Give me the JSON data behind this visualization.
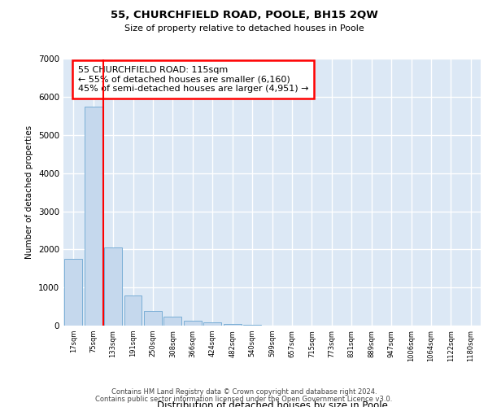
{
  "title1": "55, CHURCHFIELD ROAD, POOLE, BH15 2QW",
  "title2": "Size of property relative to detached houses in Poole",
  "xlabel": "Distribution of detached houses by size in Poole",
  "ylabel": "Number of detached properties",
  "footer1": "Contains HM Land Registry data © Crown copyright and database right 2024.",
  "footer2": "Contains public sector information licensed under the Open Government Licence v3.0.",
  "bin_labels": [
    "17sqm",
    "75sqm",
    "133sqm",
    "191sqm",
    "250sqm",
    "308sqm",
    "366sqm",
    "424sqm",
    "482sqm",
    "540sqm",
    "599sqm",
    "657sqm",
    "715sqm",
    "773sqm",
    "831sqm",
    "889sqm",
    "947sqm",
    "1006sqm",
    "1064sqm",
    "1122sqm",
    "1180sqm"
  ],
  "bar_values": [
    1750,
    5750,
    2050,
    800,
    380,
    240,
    130,
    90,
    50,
    20,
    10,
    5,
    3,
    0,
    0,
    0,
    0,
    0,
    0,
    0,
    0
  ],
  "bar_color": "#c5d8ed",
  "bar_edge_color": "#7aaed6",
  "vline_x": 2.0,
  "vline_color": "red",
  "annotation_line1": "55 CHURCHFIELD ROAD: 115sqm",
  "annotation_line2": "← 55% of detached houses are smaller (6,160)",
  "annotation_line3": "45% of semi-detached houses are larger (4,951) →",
  "ylim": [
    0,
    7000
  ],
  "yticks": [
    0,
    1000,
    2000,
    3000,
    4000,
    5000,
    6000,
    7000
  ],
  "bg_color": "#dce8f5",
  "grid_color": "white",
  "fig_width": 6.0,
  "fig_height": 5.0,
  "dpi": 100
}
